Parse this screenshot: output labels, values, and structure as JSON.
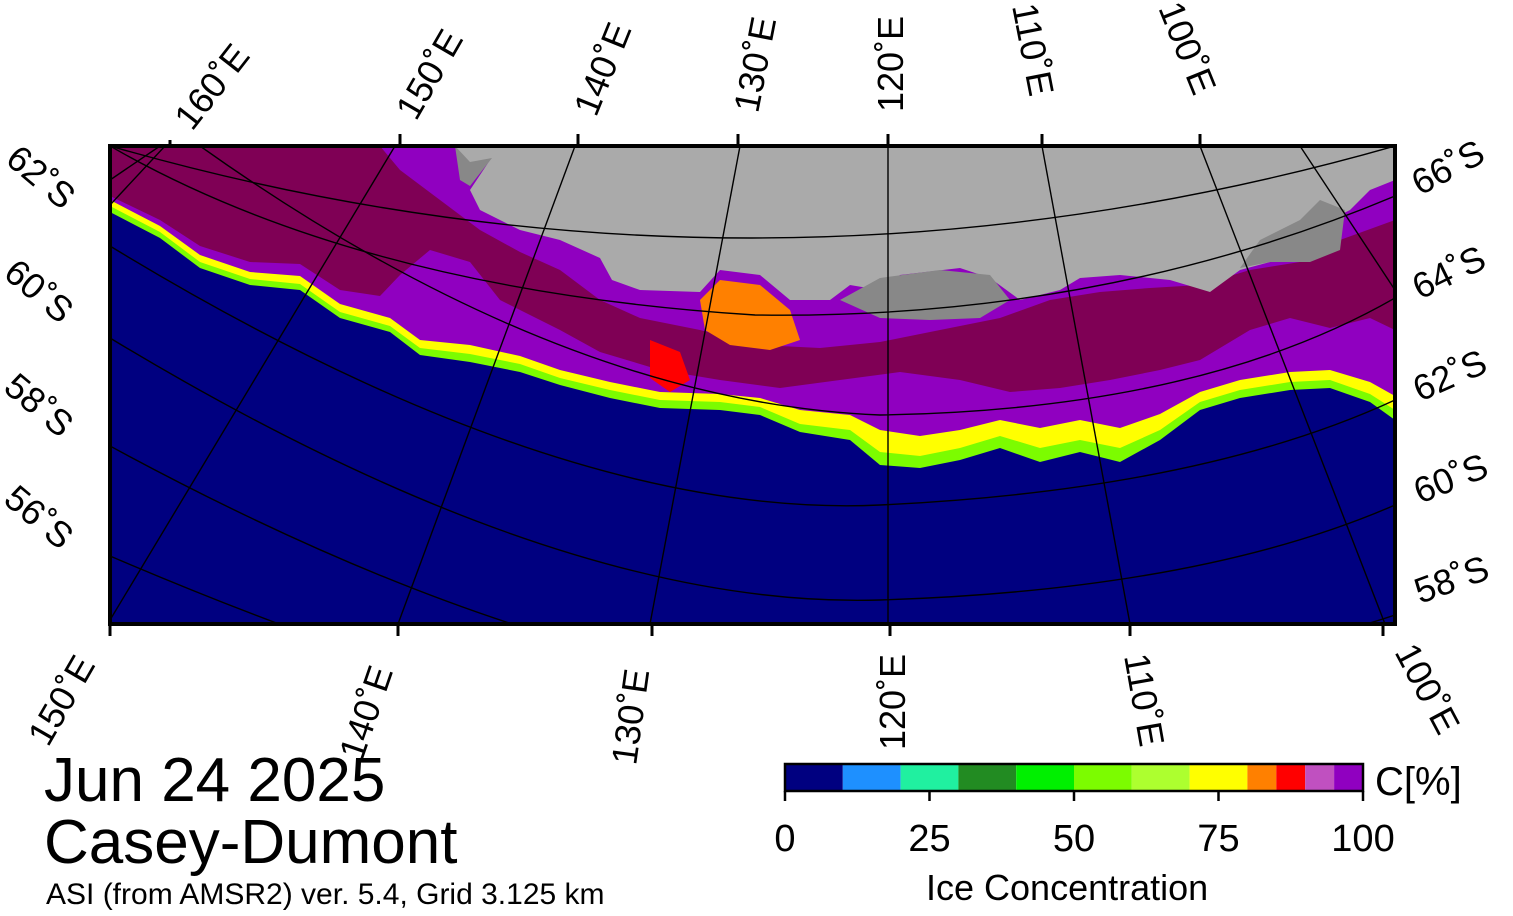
{
  "map": {
    "date": "Jun 24 2025",
    "region": "Casey-Dumont",
    "source": "ASI (from AMSR2) ver. 5.4,  Grid 3.125 km",
    "colors": {
      "open_water": "#000080",
      "land": "#aaaaaa",
      "land_dark": "#888888",
      "ice_shelf_edge": "#7f0055",
      "frame": "#000000"
    },
    "top_longitude_labels": [
      "160˚E",
      "150˚E",
      "140˚E",
      "130˚E",
      "120˚E",
      "110˚E",
      "100˚E"
    ],
    "bottom_longitude_labels": [
      "150˚E",
      "140˚E",
      "130˚E",
      "120˚E",
      "110˚E",
      "100˚E"
    ],
    "left_latitude_labels": [
      "62˚S",
      "60˚S",
      "58˚S",
      "56˚S"
    ],
    "right_latitude_labels": [
      "66˚S",
      "64˚S",
      "62˚S",
      "60˚S",
      "58˚S"
    ]
  },
  "colorbar": {
    "title": "Ice Concentration",
    "unit": "C[%]",
    "ticks": [
      "0",
      "25",
      "50",
      "75",
      "100"
    ],
    "bins": [
      {
        "from": 0,
        "to": 10,
        "color": "#000080"
      },
      {
        "from": 10,
        "to": 20,
        "color": "#1e90ff"
      },
      {
        "from": 20,
        "to": 30,
        "color": "#20f0a0"
      },
      {
        "from": 30,
        "to": 40,
        "color": "#228b22"
      },
      {
        "from": 40,
        "to": 50,
        "color": "#00f000"
      },
      {
        "from": 50,
        "to": 60,
        "color": "#7cfc00"
      },
      {
        "from": 60,
        "to": 70,
        "color": "#adff2f"
      },
      {
        "from": 70,
        "to": 80,
        "color": "#ffff00"
      },
      {
        "from": 80,
        "to": 85,
        "color": "#ff8000"
      },
      {
        "from": 85,
        "to": 90,
        "color": "#ff0000"
      },
      {
        "from": 90,
        "to": 95,
        "color": "#c050c0"
      },
      {
        "from": 95,
        "to": 100,
        "color": "#9000c0"
      }
    ]
  }
}
